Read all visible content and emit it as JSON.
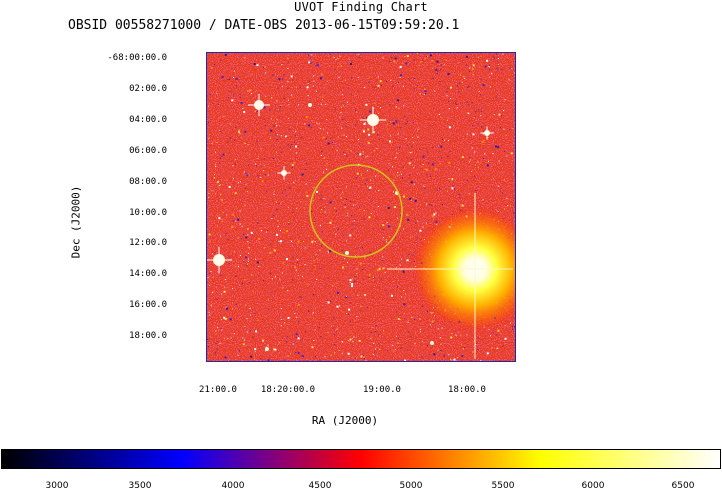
{
  "header": {
    "title": "UVOT Finding Chart",
    "subtitle": "OBSID 00558271000 / DATE-OBS 2013-06-15T09:59:20.1"
  },
  "axes": {
    "ylabel": "Dec (J2000)",
    "xlabel": "RA (J2000)",
    "dec_ticks": [
      "-68:00:00.0",
      "02:00.0",
      "04:00.0",
      "06:00.0",
      "08:00.0",
      "10:00.0",
      "12:00.0",
      "14:00.0",
      "16:00.0",
      "18:00.0"
    ],
    "ra_ticks": [
      "21:00.0",
      "18:20:00.0",
      "19:00.0",
      "18:00.0"
    ]
  },
  "colorbar": {
    "ticks": [
      "3000",
      "3500",
      "4000",
      "4500",
      "5000",
      "5500",
      "6000",
      "6500"
    ],
    "colors": [
      "#000000",
      "#0000ff",
      "#ff0000",
      "#ffff00",
      "#ffffff"
    ]
  },
  "colors": {
    "background_field": "#e83a10",
    "frame_border": "#1a2bb0",
    "circle": "#d6c21a"
  }
}
